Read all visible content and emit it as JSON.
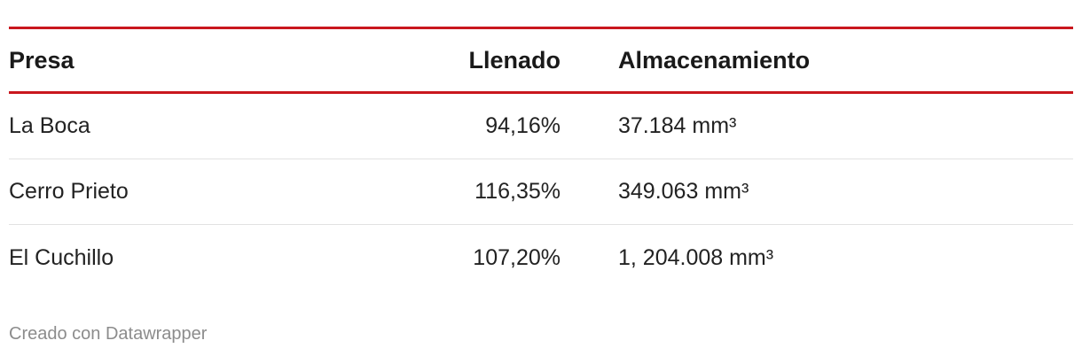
{
  "chart_data": {
    "type": "table",
    "columns": [
      "Presa",
      "Llenado",
      "Almacenamiento"
    ],
    "rows": [
      [
        "La Boca",
        "94,16%",
        "37.184 mm³"
      ],
      [
        "Cerro Prieto",
        "116,35%",
        "349.063 mm³"
      ],
      [
        "El Cuchillo",
        "107,20%",
        "1, 204.008 mm³"
      ]
    ]
  },
  "footer": "Creado con Datawrapper",
  "colors": {
    "accent_rule": "#c9171e",
    "row_divider": "#e2e2e2",
    "footer_text": "#8c8c8c"
  }
}
